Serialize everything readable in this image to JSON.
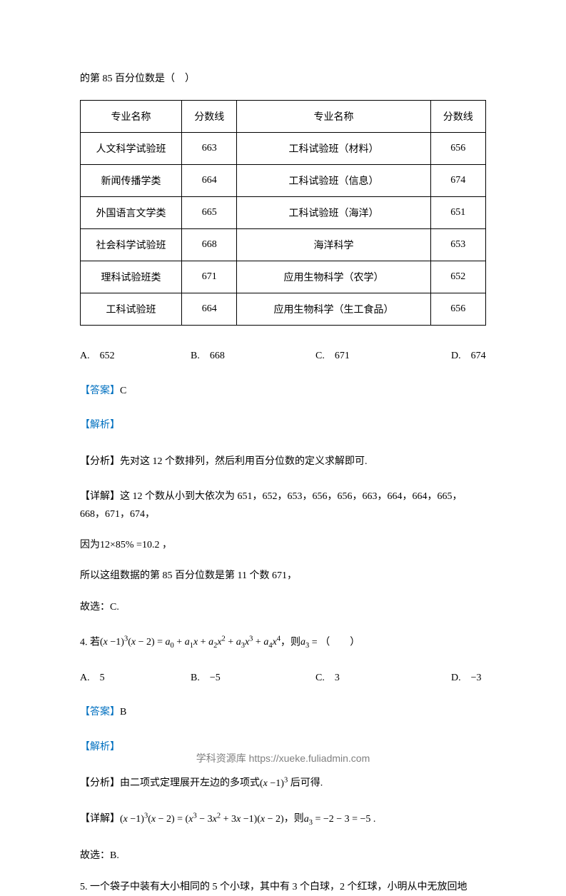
{
  "topLine": "的第 85 百分位数是（ ）",
  "table": {
    "headers": [
      "专业名称",
      "分数线",
      "专业名称",
      "分数线"
    ],
    "rows": [
      [
        "人文科学试验班",
        "663",
        "工科试验班（材料）",
        "656"
      ],
      [
        "新闻传播学类",
        "664",
        "工科试验班（信息）",
        "674"
      ],
      [
        "外国语言文学类",
        "665",
        "工科试验班（海洋）",
        "651"
      ],
      [
        "社会科学试验班",
        "668",
        "海洋科学",
        "653"
      ],
      [
        "理科试验班类",
        "671",
        "应用生物科学（农学）",
        "652"
      ],
      [
        "工科试验班",
        "664",
        "应用生物科学（生工食品）",
        "656"
      ]
    ]
  },
  "q3options": {
    "a": "A. 652",
    "b": "B. 668",
    "c": "C. 671",
    "d": "D. 674"
  },
  "q3answer": {
    "prefix": "【答案】",
    "value": "C"
  },
  "analysisLabel": "【解析】",
  "q3analysis": "【分析】先对这 12 个数排列，然后利用百分位数的定义求解即可.",
  "q3detail1": "【详解】这 12 个数从小到大依次为 651，652，653，656，656，663，664，664，665，668，671，674，",
  "q3formula": "因为12×85% =10.2 ，",
  "q3detail2": "所以这组数据的第 85 百分位数是第 11 个数 671，",
  "q3conclusion": "故选：C.",
  "q4stem_prefix": "4.  若",
  "q4stem_mid": "，则",
  "q4stem_suffix": " = （  ）",
  "q4options": {
    "a": "A. 5",
    "b": "B. −5",
    "c": "C. 3",
    "d": "D. −3"
  },
  "q4answer": {
    "prefix": "【答案】",
    "value": "B"
  },
  "q4analysis_prefix": "【分析】由二项式定理展开左边的多项式",
  "q4analysis_suffix": " 后可得.",
  "q4detail_prefix": "【详解】",
  "q4detail_mid": "，则",
  "q4conclusion": "故选：B.",
  "q5stem": "5.  一个袋子中装有大小相同的 5 个小球，其中有 3 个白球，2 个红球，小明从中无放回地",
  "footer": "学科资源库 https://xueke.fuliadmin.com"
}
